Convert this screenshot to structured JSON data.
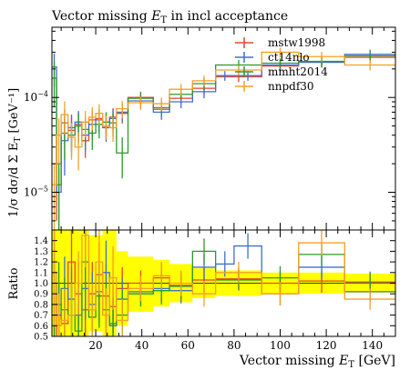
{
  "chart_data": {
    "type": "line",
    "title_main": "Vector missing ",
    "title_sym": "E",
    "title_sub": "T",
    "title_rest": " in incl acceptance",
    "ylabel_main": "1/σ dσ/d Σ E",
    "ylabel_sub": "T",
    "ylabel_unit": " [GeV⁻¹]",
    "ratio_ylabel": "Ratio",
    "xlabel_main": "Vector missing ",
    "xlabel_sym": "E",
    "xlabel_sub": "T",
    "xlabel_unit": " [GeV]",
    "xlim": [
      1,
      150
    ],
    "ylim": [
      4e-06,
      0.00055
    ],
    "ylog": true,
    "ratio_ylim": [
      0.5,
      1.5
    ],
    "x_ticks": [
      20,
      40,
      60,
      80,
      100,
      120,
      140
    ],
    "y_tick_exponents": [
      -5,
      -4
    ],
    "ratio_ticks": [
      "0.5",
      "0.6",
      "0.7",
      "0.8",
      "0.9",
      "1.0",
      "1.1",
      "1.2",
      "1.3",
      "1.4"
    ],
    "legend_position": "top-right",
    "series": [
      {
        "name": "mstw1998",
        "color": "#e8452a",
        "bins": [
          {
            "x0": 1,
            "x1": 5,
            "y": 2e-05,
            "err": 1.5e-05,
            "r": 0.7,
            "re": 0.3
          },
          {
            "x0": 5,
            "x1": 8,
            "y": 5.4e-05,
            "err": 2e-05,
            "r": 0.62,
            "re": 0.25
          },
          {
            "x0": 8,
            "x1": 11,
            "y": 4.5e-05,
            "err": 1.7e-05,
            "r": 1.2,
            "re": 0.3
          },
          {
            "x0": 11,
            "x1": 14,
            "y": 5.2e-05,
            "err": 1.8e-05,
            "r": 0.9,
            "re": 0.3
          },
          {
            "x0": 14,
            "x1": 17,
            "y": 3.5e-05,
            "err": 1.2e-05,
            "r": 0.75,
            "re": 0.25
          },
          {
            "x0": 17,
            "x1": 20,
            "y": 5.8e-05,
            "err": 1.6e-05,
            "r": 0.9,
            "re": 0.3
          },
          {
            "x0": 20,
            "x1": 23,
            "y": 6e-05,
            "err": 1.6e-05,
            "r": 1.08,
            "re": 0.3
          },
          {
            "x0": 23,
            "x1": 26,
            "y": 5e-05,
            "err": 1.4e-05,
            "r": 0.88,
            "re": 0.3
          },
          {
            "x0": 26,
            "x1": 29,
            "y": 6.2e-05,
            "err": 1.5e-05,
            "r": 0.78,
            "re": 0.25
          },
          {
            "x0": 29,
            "x1": 34,
            "y": 6.8e-05,
            "err": 1.5e-05,
            "r": 0.95,
            "re": 0.2
          },
          {
            "x0": 34,
            "x1": 45,
            "y": 0.0001,
            "err": 1.5e-05,
            "r": 1.0,
            "re": 0.12
          },
          {
            "x0": 45,
            "x1": 52,
            "y": 7.5e-05,
            "err": 1.3e-05,
            "r": 1.05,
            "re": 0.13
          },
          {
            "x0": 52,
            "x1": 62,
            "y": 9.8e-05,
            "err": 1.4e-05,
            "r": 0.98,
            "re": 0.12
          },
          {
            "x0": 62,
            "x1": 72,
            "y": 0.000125,
            "err": 1.8e-05,
            "r": 1.03,
            "re": 0.12
          },
          {
            "x0": 72,
            "x1": 92,
            "y": 0.000165,
            "err": 2e-05,
            "r": 1.04,
            "re": 0.1
          },
          {
            "x0": 92,
            "x1": 108,
            "y": 0.000215,
            "err": 2.6e-05,
            "r": 1.0,
            "re": 0.11
          },
          {
            "x0": 108,
            "x1": 128,
            "y": 0.000235,
            "err": 2.8e-05,
            "r": 1.02,
            "re": 0.11
          },
          {
            "x0": 128,
            "x1": 150,
            "y": 0.000265,
            "err": 3.2e-05,
            "r": 1.01,
            "re": 0.1
          }
        ]
      },
      {
        "name": "ct14nlo",
        "color": "#3f6fd4",
        "bins": [
          {
            "x0": 1,
            "x1": 3,
            "y": 0.00021,
            "err": 8e-05,
            "r": 0.8,
            "re": 0.4
          },
          {
            "x0": 3,
            "x1": 5,
            "y": 1e-05,
            "err": 8e-06,
            "r": 0.7,
            "re": 0.3
          },
          {
            "x0": 5,
            "x1": 8,
            "y": 3.5e-05,
            "err": 2e-05,
            "r": 0.95,
            "re": 0.3
          },
          {
            "x0": 8,
            "x1": 11,
            "y": 4.8e-05,
            "err": 1.8e-05,
            "r": 0.85,
            "re": 0.3
          },
          {
            "x0": 11,
            "x1": 14,
            "y": 5.5e-05,
            "err": 1.7e-05,
            "r": 0.7,
            "re": 0.3
          },
          {
            "x0": 14,
            "x1": 17,
            "y": 4e-05,
            "err": 1.3e-05,
            "r": 0.95,
            "re": 0.3
          },
          {
            "x0": 17,
            "x1": 20,
            "y": 5.2e-05,
            "err": 1.5e-05,
            "r": 0.8,
            "re": 0.3
          },
          {
            "x0": 20,
            "x1": 23,
            "y": 5.8e-05,
            "err": 1.6e-05,
            "r": 0.92,
            "re": 0.3
          },
          {
            "x0": 23,
            "x1": 26,
            "y": 4.8e-05,
            "err": 1.4e-05,
            "r": 1.1,
            "re": 0.3
          },
          {
            "x0": 26,
            "x1": 29,
            "y": 6e-05,
            "err": 1.5e-05,
            "r": 0.6,
            "re": 0.25
          },
          {
            "x0": 29,
            "x1": 34,
            "y": 7e-05,
            "err": 1.5e-05,
            "r": 0.85,
            "re": 0.2
          },
          {
            "x0": 34,
            "x1": 45,
            "y": 9.2e-05,
            "err": 1.4e-05,
            "r": 0.92,
            "re": 0.12
          },
          {
            "x0": 45,
            "x1": 52,
            "y": 7e-05,
            "err": 1.2e-05,
            "r": 0.95,
            "re": 0.13
          },
          {
            "x0": 52,
            "x1": 62,
            "y": 9e-05,
            "err": 1.3e-05,
            "r": 0.93,
            "re": 0.12
          },
          {
            "x0": 62,
            "x1": 72,
            "y": 0.000115,
            "err": 1.7e-05,
            "r": 1.15,
            "re": 0.12
          },
          {
            "x0": 72,
            "x1": 80,
            "y": 0.00017,
            "err": 2e-05,
            "r": 1.18,
            "re": 0.12
          },
          {
            "x0": 80,
            "x1": 92,
            "y": 0.00017,
            "err": 2e-05,
            "r": 1.35,
            "re": 0.12
          },
          {
            "x0": 92,
            "x1": 108,
            "y": 0.00022,
            "err": 2.7e-05,
            "r": 0.9,
            "re": 0.11
          },
          {
            "x0": 108,
            "x1": 128,
            "y": 0.000235,
            "err": 2.8e-05,
            "r": 1.15,
            "re": 0.11
          },
          {
            "x0": 128,
            "x1": 150,
            "y": 0.000285,
            "err": 3.4e-05,
            "r": 0.92,
            "re": 0.1
          }
        ]
      },
      {
        "name": "mmht2014",
        "color": "#2a9a2a",
        "bins": [
          {
            "x0": 1,
            "x1": 3,
            "y": 0.00016,
            "err": 8e-05,
            "r": 1.0,
            "re": 0.5
          },
          {
            "x0": 3,
            "x1": 5,
            "y": 1.2e-05,
            "err": 8e-06,
            "r": 0.8,
            "re": 0.4
          },
          {
            "x0": 5,
            "x1": 8,
            "y": 4.2e-05,
            "err": 2e-05,
            "r": 0.75,
            "re": 0.3
          },
          {
            "x0": 8,
            "x1": 11,
            "y": 4e-05,
            "err": 1.6e-05,
            "r": 0.7,
            "re": 0.3
          },
          {
            "x0": 11,
            "x1": 14,
            "y": 5e-05,
            "err": 1.7e-05,
            "r": 0.55,
            "re": 0.25
          },
          {
            "x0": 14,
            "x1": 17,
            "y": 4.6e-05,
            "err": 1.5e-05,
            "r": 1.2,
            "re": 0.3
          },
          {
            "x0": 17,
            "x1": 20,
            "y": 4.2e-05,
            "err": 1.4e-05,
            "r": 0.68,
            "re": 0.25
          },
          {
            "x0": 20,
            "x1": 23,
            "y": 5.2e-05,
            "err": 1.5e-05,
            "r": 0.88,
            "re": 0.3
          },
          {
            "x0": 23,
            "x1": 26,
            "y": 5.5e-05,
            "err": 1.5e-05,
            "r": 0.75,
            "re": 0.25
          },
          {
            "x0": 26,
            "x1": 29,
            "y": 5.4e-05,
            "err": 1.5e-05,
            "r": 0.62,
            "re": 0.25
          },
          {
            "x0": 29,
            "x1": 34,
            "y": 2.6e-05,
            "err": 1.2e-05,
            "r": 0.7,
            "re": 0.25
          },
          {
            "x0": 34,
            "x1": 45,
            "y": 9.8e-05,
            "err": 1.5e-05,
            "r": 0.9,
            "re": 0.12
          },
          {
            "x0": 45,
            "x1": 52,
            "y": 7.8e-05,
            "err": 1.3e-05,
            "r": 0.93,
            "re": 0.13
          },
          {
            "x0": 52,
            "x1": 62,
            "y": 0.000108,
            "err": 1.5e-05,
            "r": 0.97,
            "re": 0.12
          },
          {
            "x0": 62,
            "x1": 72,
            "y": 0.00014,
            "err": 2e-05,
            "r": 1.3,
            "re": 0.12
          },
          {
            "x0": 72,
            "x1": 92,
            "y": 0.00022,
            "err": 2.8e-05,
            "r": 1.03,
            "re": 0.1
          },
          {
            "x0": 92,
            "x1": 108,
            "y": 0.00023,
            "err": 2.8e-05,
            "r": 1.05,
            "re": 0.11
          },
          {
            "x0": 108,
            "x1": 128,
            "y": 0.00024,
            "err": 2.9e-05,
            "r": 1.27,
            "re": 0.11
          },
          {
            "x0": 128,
            "x1": 150,
            "y": 0.000275,
            "err": 3.3e-05,
            "r": 1.0,
            "re": 0.1
          }
        ]
      },
      {
        "name": "nnpdf30",
        "color": "#f5a024",
        "bins": [
          {
            "x0": 1,
            "x1": 3,
            "y": 1.2e-05,
            "err": 8e-06,
            "r": 1.1,
            "re": 0.5
          },
          {
            "x0": 3,
            "x1": 5,
            "y": 4e-05,
            "err": 2e-05,
            "r": 0.6,
            "re": 0.3
          },
          {
            "x0": 5,
            "x1": 8,
            "y": 6.6e-05,
            "err": 2.5e-05,
            "r": 0.65,
            "re": 0.3
          },
          {
            "x0": 8,
            "x1": 11,
            "y": 3.8e-05,
            "err": 1.6e-05,
            "r": 0.7,
            "re": 0.3
          },
          {
            "x0": 11,
            "x1": 14,
            "y": 3e-05,
            "err": 1.3e-05,
            "r": 1.0,
            "re": 0.3
          },
          {
            "x0": 14,
            "x1": 17,
            "y": 5.5e-05,
            "err": 1.7e-05,
            "r": 1.45,
            "re": 0.3
          },
          {
            "x0": 17,
            "x1": 20,
            "y": 6.2e-05,
            "err": 1.7e-05,
            "r": 0.75,
            "re": 0.25
          },
          {
            "x0": 20,
            "x1": 23,
            "y": 6.8e-05,
            "err": 1.7e-05,
            "r": 1.2,
            "re": 0.3
          },
          {
            "x0": 23,
            "x1": 26,
            "y": 5e-05,
            "err": 1.4e-05,
            "r": 0.7,
            "re": 0.25
          },
          {
            "x0": 26,
            "x1": 29,
            "y": 4.8e-05,
            "err": 1.4e-05,
            "r": 1.05,
            "re": 0.3
          },
          {
            "x0": 29,
            "x1": 34,
            "y": 7.6e-05,
            "err": 1.6e-05,
            "r": 0.65,
            "re": 0.2
          },
          {
            "x0": 34,
            "x1": 45,
            "y": 8.8e-05,
            "err": 1.4e-05,
            "r": 0.95,
            "re": 0.12
          },
          {
            "x0": 45,
            "x1": 52,
            "y": 8.6e-05,
            "err": 1.4e-05,
            "r": 1.07,
            "re": 0.13
          },
          {
            "x0": 52,
            "x1": 62,
            "y": 0.000122,
            "err": 1.7e-05,
            "r": 1.0,
            "re": 0.12
          },
          {
            "x0": 62,
            "x1": 72,
            "y": 0.00015,
            "err": 2e-05,
            "r": 0.9,
            "re": 0.12
          },
          {
            "x0": 72,
            "x1": 92,
            "y": 0.000195,
            "err": 2.4e-05,
            "r": 1.1,
            "re": 0.1
          },
          {
            "x0": 92,
            "x1": 108,
            "y": 0.0003,
            "err": 3.6e-05,
            "r": 0.9,
            "re": 0.11
          },
          {
            "x0": 108,
            "x1": 128,
            "y": 0.00027,
            "err": 3.2e-05,
            "r": 1.38,
            "re": 0.12
          },
          {
            "x0": 128,
            "x1": 150,
            "y": 0.00022,
            "err": 2.7e-05,
            "r": 0.85,
            "re": 0.1
          }
        ]
      }
    ],
    "band": {
      "color": "#ffff00",
      "bins": [
        {
          "x0": 1,
          "x1": 5,
          "lo": 0.5,
          "hi": 1.5
        },
        {
          "x0": 5,
          "x1": 8,
          "lo": 0.5,
          "hi": 1.5
        },
        {
          "x0": 8,
          "x1": 11,
          "lo": 0.5,
          "hi": 1.5
        },
        {
          "x0": 11,
          "x1": 14,
          "lo": 0.5,
          "hi": 1.5
        },
        {
          "x0": 14,
          "x1": 17,
          "lo": 0.5,
          "hi": 1.5
        },
        {
          "x0": 17,
          "x1": 20,
          "lo": 0.55,
          "hi": 1.45
        },
        {
          "x0": 20,
          "x1": 23,
          "lo": 0.55,
          "hi": 1.45
        },
        {
          "x0": 23,
          "x1": 26,
          "lo": 0.5,
          "hi": 1.5
        },
        {
          "x0": 26,
          "x1": 29,
          "lo": 0.5,
          "hi": 1.5
        },
        {
          "x0": 29,
          "x1": 34,
          "lo": 0.6,
          "hi": 1.3
        },
        {
          "x0": 34,
          "x1": 45,
          "lo": 0.73,
          "hi": 1.25
        },
        {
          "x0": 45,
          "x1": 52,
          "lo": 0.78,
          "hi": 1.22
        },
        {
          "x0": 52,
          "x1": 62,
          "lo": 0.82,
          "hi": 1.18
        },
        {
          "x0": 62,
          "x1": 72,
          "lo": 0.86,
          "hi": 1.14
        },
        {
          "x0": 72,
          "x1": 92,
          "lo": 0.88,
          "hi": 1.12
        },
        {
          "x0": 92,
          "x1": 108,
          "lo": 0.9,
          "hi": 1.1
        },
        {
          "x0": 108,
          "x1": 128,
          "lo": 0.9,
          "hi": 1.1
        },
        {
          "x0": 128,
          "x1": 150,
          "lo": 0.91,
          "hi": 1.09
        }
      ]
    }
  }
}
